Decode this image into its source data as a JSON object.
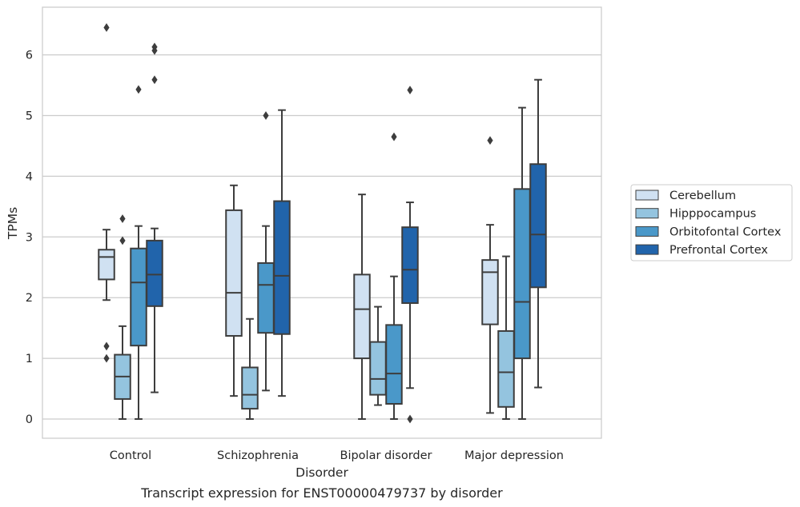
{
  "caption": "Transcript expression for ENST00000479737 by disorder",
  "chart_data": {
    "type": "box",
    "title": "",
    "xlabel": "Disorder",
    "ylabel": "TPMs",
    "ylim": [
      -0.3,
      6.8
    ],
    "yticks": [
      0,
      1,
      2,
      3,
      4,
      5,
      6
    ],
    "grid": "horizontal",
    "legend_position": "right",
    "categories": [
      "Control",
      "Schizophrenia",
      "Bipolar disorder",
      "Major depression"
    ],
    "series": [
      {
        "name": "Cerebellum",
        "color": "#d0e1f2",
        "boxes": [
          {
            "whislo": 1.96,
            "q1": 2.3,
            "med": 2.67,
            "q3": 2.79,
            "whishi": 3.12,
            "fliers": [
              6.45,
              1.2,
              1.0
            ]
          },
          {
            "whislo": 0.38,
            "q1": 1.37,
            "med": 2.08,
            "q3": 3.44,
            "whishi": 3.85,
            "fliers": []
          },
          {
            "whislo": 0.0,
            "q1": 1.0,
            "med": 1.81,
            "q3": 2.38,
            "whishi": 3.7,
            "fliers": []
          },
          {
            "whislo": 0.1,
            "q1": 1.56,
            "med": 2.42,
            "q3": 2.62,
            "whishi": 3.2,
            "fliers": [
              4.59
            ]
          }
        ]
      },
      {
        "name": "Hipppocampus",
        "color": "#94c4df",
        "boxes": [
          {
            "whislo": 0.0,
            "q1": 0.33,
            "med": 0.7,
            "q3": 1.06,
            "whishi": 1.53,
            "fliers": [
              3.3,
              2.94
            ]
          },
          {
            "whislo": 0.0,
            "q1": 0.17,
            "med": 0.4,
            "q3": 0.85,
            "whishi": 1.65,
            "fliers": []
          },
          {
            "whislo": 0.23,
            "q1": 0.4,
            "med": 0.66,
            "q3": 1.27,
            "whishi": 1.85,
            "fliers": []
          },
          {
            "whislo": 0.0,
            "q1": 0.2,
            "med": 0.77,
            "q3": 1.45,
            "whishi": 2.68,
            "fliers": []
          }
        ]
      },
      {
        "name": "Orbitofontal Cortex",
        "color": "#4a98c9",
        "boxes": [
          {
            "whislo": 0.0,
            "q1": 1.21,
            "med": 2.25,
            "q3": 2.81,
            "whishi": 3.18,
            "fliers": [
              5.43
            ]
          },
          {
            "whislo": 0.47,
            "q1": 1.42,
            "med": 2.21,
            "q3": 2.57,
            "whishi": 3.18,
            "fliers": [
              5.0
            ]
          },
          {
            "whislo": 0.0,
            "q1": 0.25,
            "med": 0.75,
            "q3": 1.55,
            "whishi": 2.35,
            "fliers": [
              4.65
            ]
          },
          {
            "whislo": 0.0,
            "q1": 1.0,
            "med": 1.93,
            "q3": 3.79,
            "whishi": 5.13,
            "fliers": []
          }
        ]
      },
      {
        "name": "Prefrontal Cortex",
        "color": "#2164ab",
        "boxes": [
          {
            "whislo": 0.44,
            "q1": 1.86,
            "med": 2.38,
            "q3": 2.94,
            "whishi": 3.14,
            "fliers": [
              6.13,
              6.07,
              5.59
            ]
          },
          {
            "whislo": 0.38,
            "q1": 1.4,
            "med": 2.36,
            "q3": 3.59,
            "whishi": 5.09,
            "fliers": []
          },
          {
            "whislo": 0.51,
            "q1": 1.91,
            "med": 2.46,
            "q3": 3.16,
            "whishi": 3.57,
            "fliers": [
              5.42,
              0.0
            ]
          },
          {
            "whislo": 0.52,
            "q1": 2.17,
            "med": 3.04,
            "q3": 4.2,
            "whishi": 5.59,
            "fliers": []
          }
        ]
      }
    ]
  }
}
